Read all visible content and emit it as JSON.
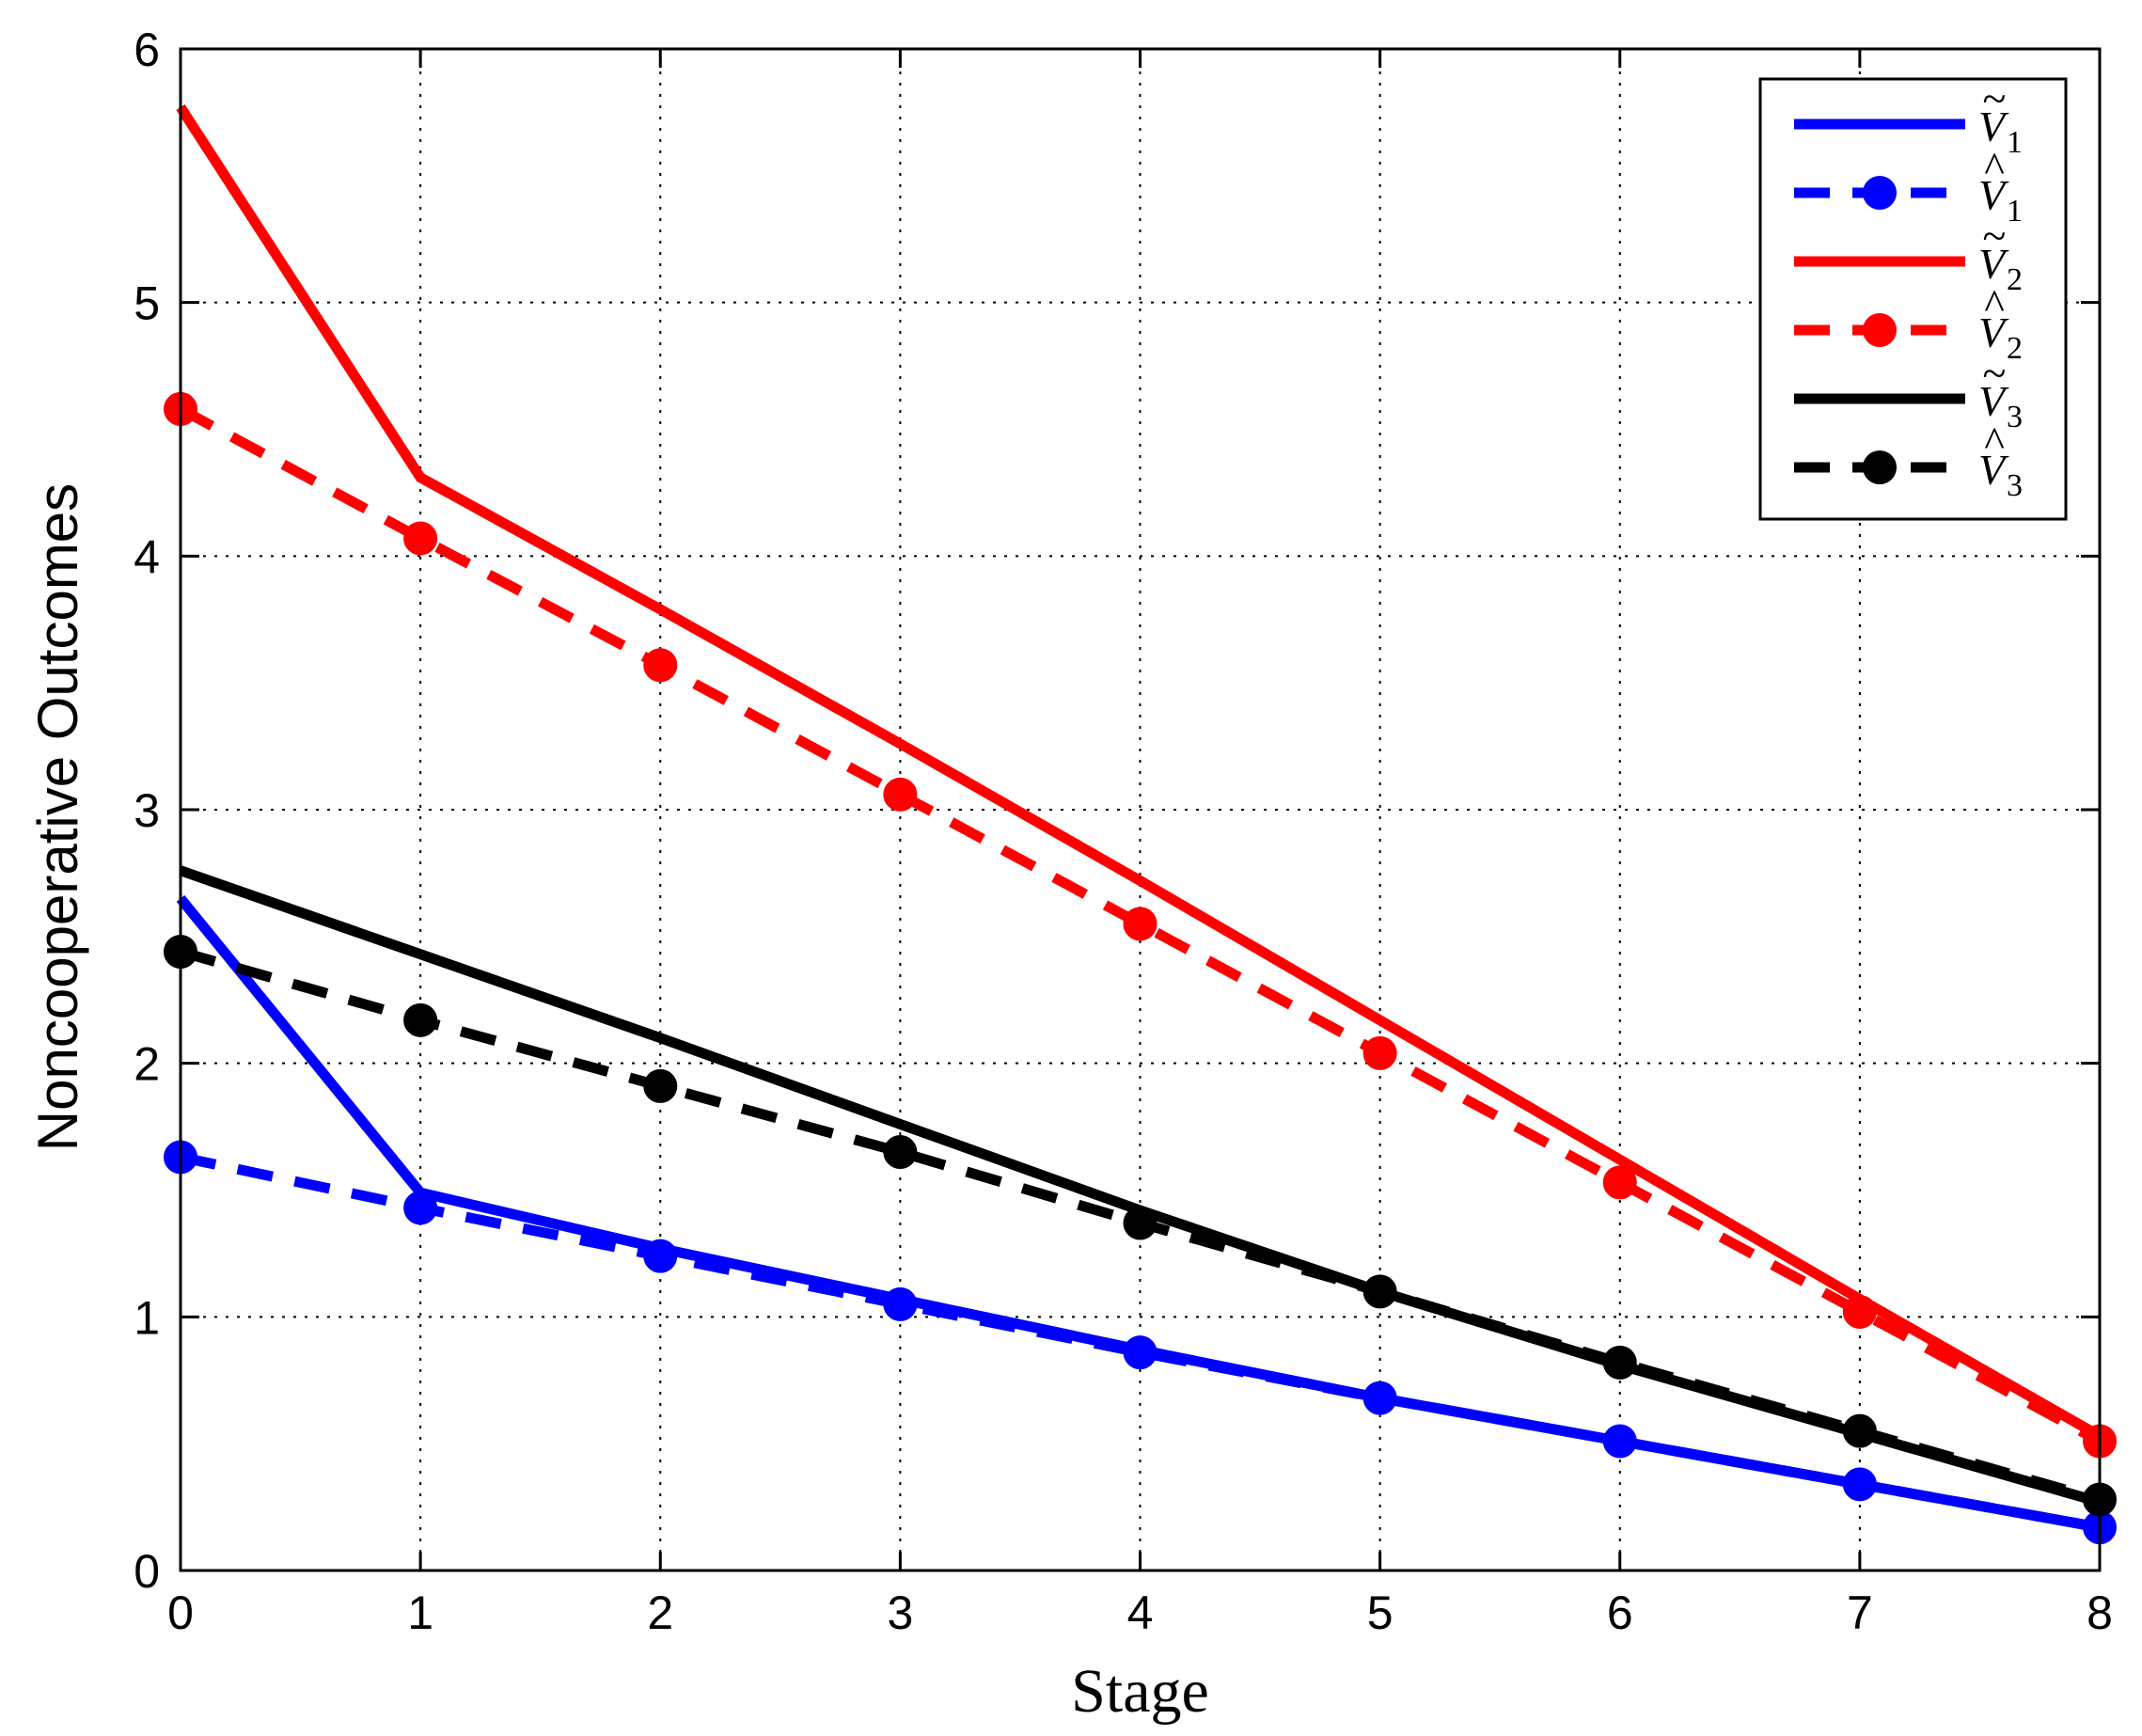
{
  "chart_data": {
    "type": "line",
    "title": "",
    "xlabel": "Stage",
    "ylabel": "Noncooperative Outcomes",
    "x": [
      0,
      1,
      2,
      3,
      4,
      5,
      6,
      7,
      8
    ],
    "xlim": [
      0,
      8
    ],
    "ylim": [
      0,
      6
    ],
    "xticks": [
      "0",
      "1",
      "2",
      "3",
      "4",
      "5",
      "6",
      "7",
      "8"
    ],
    "yticks": [
      "0",
      "1",
      "2",
      "3",
      "4",
      "5",
      "6"
    ],
    "grid": true,
    "legend_position": "top-right",
    "series": [
      {
        "name": "Ṽ1",
        "symbol": "V",
        "accent": "~",
        "sub": "1",
        "color": "#0000ff",
        "style": "solid",
        "marker": "none",
        "values": [
          2.65,
          1.49,
          1.27,
          1.07,
          0.87,
          0.68,
          0.51,
          0.34,
          0.17
        ]
      },
      {
        "name": "V̂1",
        "symbol": "V",
        "accent": "^",
        "sub": "1",
        "color": "#0000ff",
        "style": "dashed",
        "marker": "circle",
        "values": [
          1.63,
          1.43,
          1.24,
          1.05,
          0.86,
          0.68,
          0.51,
          0.34,
          0.17
        ]
      },
      {
        "name": "Ṽ2",
        "symbol": "V",
        "accent": "~",
        "sub": "2",
        "color": "#ff0000",
        "style": "solid",
        "marker": "none",
        "values": [
          5.77,
          4.31,
          3.79,
          3.26,
          2.72,
          2.17,
          1.62,
          1.07,
          0.53
        ]
      },
      {
        "name": "V̂2",
        "symbol": "V",
        "accent": "^",
        "sub": "2",
        "color": "#ff0000",
        "style": "dashed",
        "marker": "circle",
        "values": [
          4.58,
          4.07,
          3.57,
          3.06,
          2.55,
          2.04,
          1.53,
          1.02,
          0.51
        ]
      },
      {
        "name": "Ṽ3",
        "symbol": "V",
        "accent": "~",
        "sub": "3",
        "color": "#000000",
        "style": "solid",
        "marker": "none",
        "values": [
          2.76,
          2.43,
          2.1,
          1.76,
          1.42,
          1.1,
          0.81,
          0.54,
          0.27
        ]
      },
      {
        "name": "V̂3",
        "symbol": "V",
        "accent": "^",
        "sub": "3",
        "color": "#000000",
        "style": "dashed",
        "marker": "circle",
        "values": [
          2.44,
          2.17,
          1.91,
          1.65,
          1.37,
          1.1,
          0.82,
          0.55,
          0.28
        ]
      }
    ]
  }
}
